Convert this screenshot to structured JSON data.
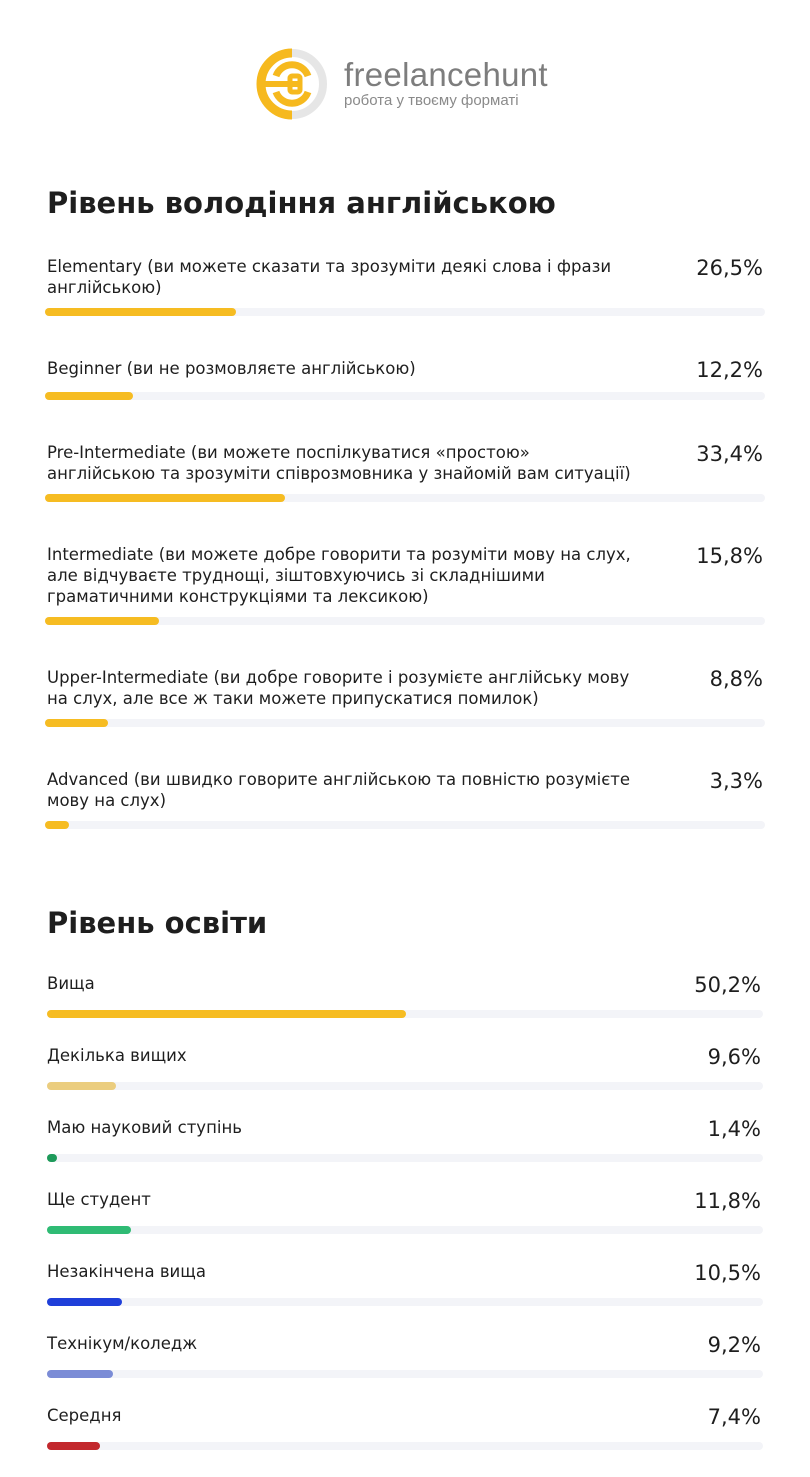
{
  "logo": {
    "brand": "freelancehunt",
    "tagline": "робота у твоєму форматі",
    "colors": {
      "yellow": "#f6b91e",
      "grey": "#e4e4e4"
    }
  },
  "chart_data": [
    {
      "type": "bar",
      "orientation": "horizontal",
      "title": "Рівень володіння англійською",
      "xlim": [
        0,
        100
      ],
      "unit": "%",
      "categories": [
        "Elementary (ви можете сказати та зрозуміти деякі слова і фрази англійською)",
        "Beginner (ви не розмовляєте англійською)",
        "Pre-Intermediate (ви можете поспілкуватися «простою» англійською та зрозуміти співрозмовника у знайомій вам ситуації)",
        "Intermediate (ви можете добре говорити та розуміти мову на слух, але відчуваєте труднощі, зіштовхуючись зі складнішими граматичними конструкціями та лексикою)",
        "Upper-Intermediate (ви добре говорите і розумієте англійську мову на слух, але все ж таки можете припускатися помилок)",
        "Advanced (ви швидко говорите англійською та повністю розумієте мову на слух)"
      ],
      "values": [
        26.5,
        12.2,
        33.4,
        15.8,
        8.8,
        3.3
      ],
      "labels": [
        "26,5%",
        "12,2%",
        "33,4%",
        "15,8%",
        "8,8%",
        "3,3%"
      ],
      "colors": [
        "#f6bc22",
        "#f6bc22",
        "#f6bc22",
        "#f6bc22",
        "#f6bc22",
        "#f6bc22"
      ]
    },
    {
      "type": "bar",
      "orientation": "horizontal",
      "title": "Рівень освіти",
      "xlim": [
        0,
        100
      ],
      "unit": "%",
      "categories": [
        "Вища",
        "Декілька вищих",
        "Маю науковий ступінь",
        "Ще студент",
        "Незакінчена вища",
        "Технікум/коледж",
        "Середня"
      ],
      "values": [
        50.2,
        9.6,
        1.4,
        11.8,
        10.5,
        9.2,
        7.4
      ],
      "labels": [
        "50,2%",
        "9,6%",
        "1,4%",
        "11,8%",
        "10,5%",
        "9,2%",
        "7,4%"
      ],
      "colors": [
        "#f6bc22",
        "#ebcd7e",
        "#1e9a5a",
        "#2fbb74",
        "#1f3fd9",
        "#7b8cd6",
        "#c2282d"
      ]
    }
  ]
}
